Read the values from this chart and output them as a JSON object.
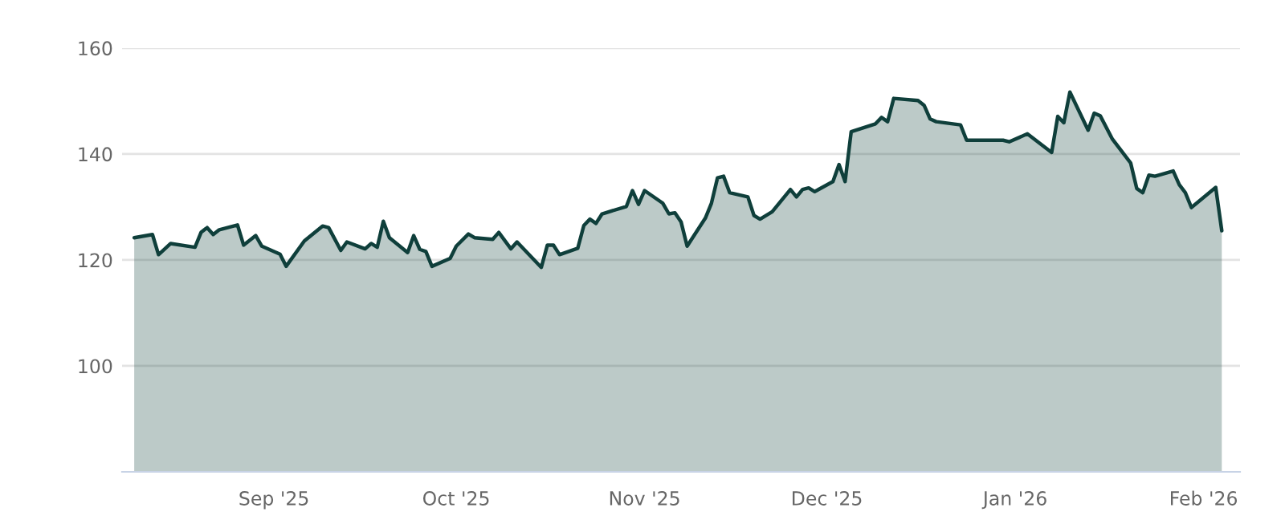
{
  "chart_data": {
    "type": "area",
    "x": [
      "2025-08-09",
      "2025-08-12",
      "2025-08-13",
      "2025-08-15",
      "2025-08-19",
      "2025-08-20",
      "2025-08-21",
      "2025-08-22",
      "2025-08-23",
      "2025-08-26",
      "2025-08-27",
      "2025-08-29",
      "2025-08-30",
      "2025-09-02",
      "2025-09-03",
      "2025-09-06",
      "2025-09-09",
      "2025-09-10",
      "2025-09-12",
      "2025-09-13",
      "2025-09-16",
      "2025-09-17",
      "2025-09-18",
      "2025-09-19",
      "2025-09-20",
      "2025-09-23",
      "2025-09-24",
      "2025-09-25",
      "2025-09-26",
      "2025-09-27",
      "2025-09-30",
      "2025-10-01",
      "2025-10-03",
      "2025-10-04",
      "2025-10-07",
      "2025-10-08",
      "2025-10-10",
      "2025-10-11",
      "2025-10-15",
      "2025-10-16",
      "2025-10-17",
      "2025-10-18",
      "2025-10-21",
      "2025-10-22",
      "2025-10-23",
      "2025-10-24",
      "2025-10-25",
      "2025-10-29",
      "2025-10-30",
      "2025-10-31",
      "2025-11-01",
      "2025-11-04",
      "2025-11-05",
      "2025-11-06",
      "2025-11-07",
      "2025-11-08",
      "2025-11-11",
      "2025-11-12",
      "2025-11-13",
      "2025-11-14",
      "2025-11-15",
      "2025-11-18",
      "2025-11-19",
      "2025-11-20",
      "2025-11-22",
      "2025-11-25",
      "2025-11-26",
      "2025-11-27",
      "2025-11-28",
      "2025-11-29",
      "2025-12-02",
      "2025-12-03",
      "2025-12-04",
      "2025-12-05",
      "2025-12-09",
      "2025-12-10",
      "2025-12-11",
      "2025-12-12",
      "2025-12-16",
      "2025-12-17",
      "2025-12-18",
      "2025-12-19",
      "2025-12-23",
      "2025-12-24",
      "2025-12-30",
      "2025-12-31",
      "2026-01-03",
      "2026-01-07",
      "2026-01-08",
      "2026-01-09",
      "2026-01-10",
      "2026-01-13",
      "2026-01-14",
      "2026-01-15",
      "2026-01-17",
      "2026-01-20",
      "2026-01-21",
      "2026-01-22",
      "2026-01-23",
      "2026-01-24",
      "2026-01-27",
      "2026-01-28",
      "2026-01-29",
      "2026-01-30",
      "2026-02-03",
      "2026-02-04"
    ],
    "series": [
      {
        "color": "#0f3f3b",
        "values": [
          124.2,
          124.8,
          121.0,
          123.1,
          122.4,
          125.2,
          126.1,
          124.8,
          125.7,
          126.6,
          122.8,
          124.6,
          122.6,
          121.1,
          118.8,
          123.6,
          126.4,
          126.1,
          121.8,
          123.4,
          122.1,
          123.1,
          122.4,
          127.3,
          124.2,
          121.4,
          124.6,
          122.0,
          121.6,
          118.8,
          120.3,
          122.6,
          124.9,
          124.2,
          123.9,
          125.2,
          122.1,
          123.4,
          118.6,
          122.8,
          122.8,
          121.0,
          122.2,
          126.5,
          127.7,
          126.9,
          128.7,
          130.1,
          133.1,
          130.5,
          133.1,
          130.7,
          128.7,
          128.9,
          127.2,
          122.6,
          127.9,
          130.7,
          135.5,
          135.8,
          132.7,
          131.9,
          128.4,
          127.7,
          129.1,
          133.3,
          131.9,
          133.3,
          133.6,
          132.9,
          134.8,
          138.0,
          134.8,
          144.2,
          145.7,
          146.9,
          146.1,
          150.5,
          150.1,
          149.2,
          146.6,
          146.1,
          145.5,
          142.6,
          142.6,
          142.3,
          143.8,
          140.3,
          147.1,
          145.9,
          151.7,
          144.5,
          147.7,
          147.2,
          142.8,
          138.3,
          133.5,
          132.7,
          136.0,
          135.8,
          136.8,
          134.2,
          132.7,
          129.9,
          133.7,
          125.5
        ]
      }
    ],
    "xlim": [
      "2025-08-07",
      "2026-02-07"
    ],
    "xticks": [
      {
        "value": "2025-09-01",
        "label": "Sep '25"
      },
      {
        "value": "2025-10-01",
        "label": "Oct '25"
      },
      {
        "value": "2025-11-01",
        "label": "Nov '25"
      },
      {
        "value": "2025-12-01",
        "label": "Dec '25"
      },
      {
        "value": "2026-01-01",
        "label": "Jan '26"
      },
      {
        "value": "2026-02-01",
        "label": "Feb '26"
      }
    ],
    "ylim": [
      80,
      160
    ],
    "yticks": [
      100,
      120,
      140,
      160
    ],
    "grid": "y"
  }
}
